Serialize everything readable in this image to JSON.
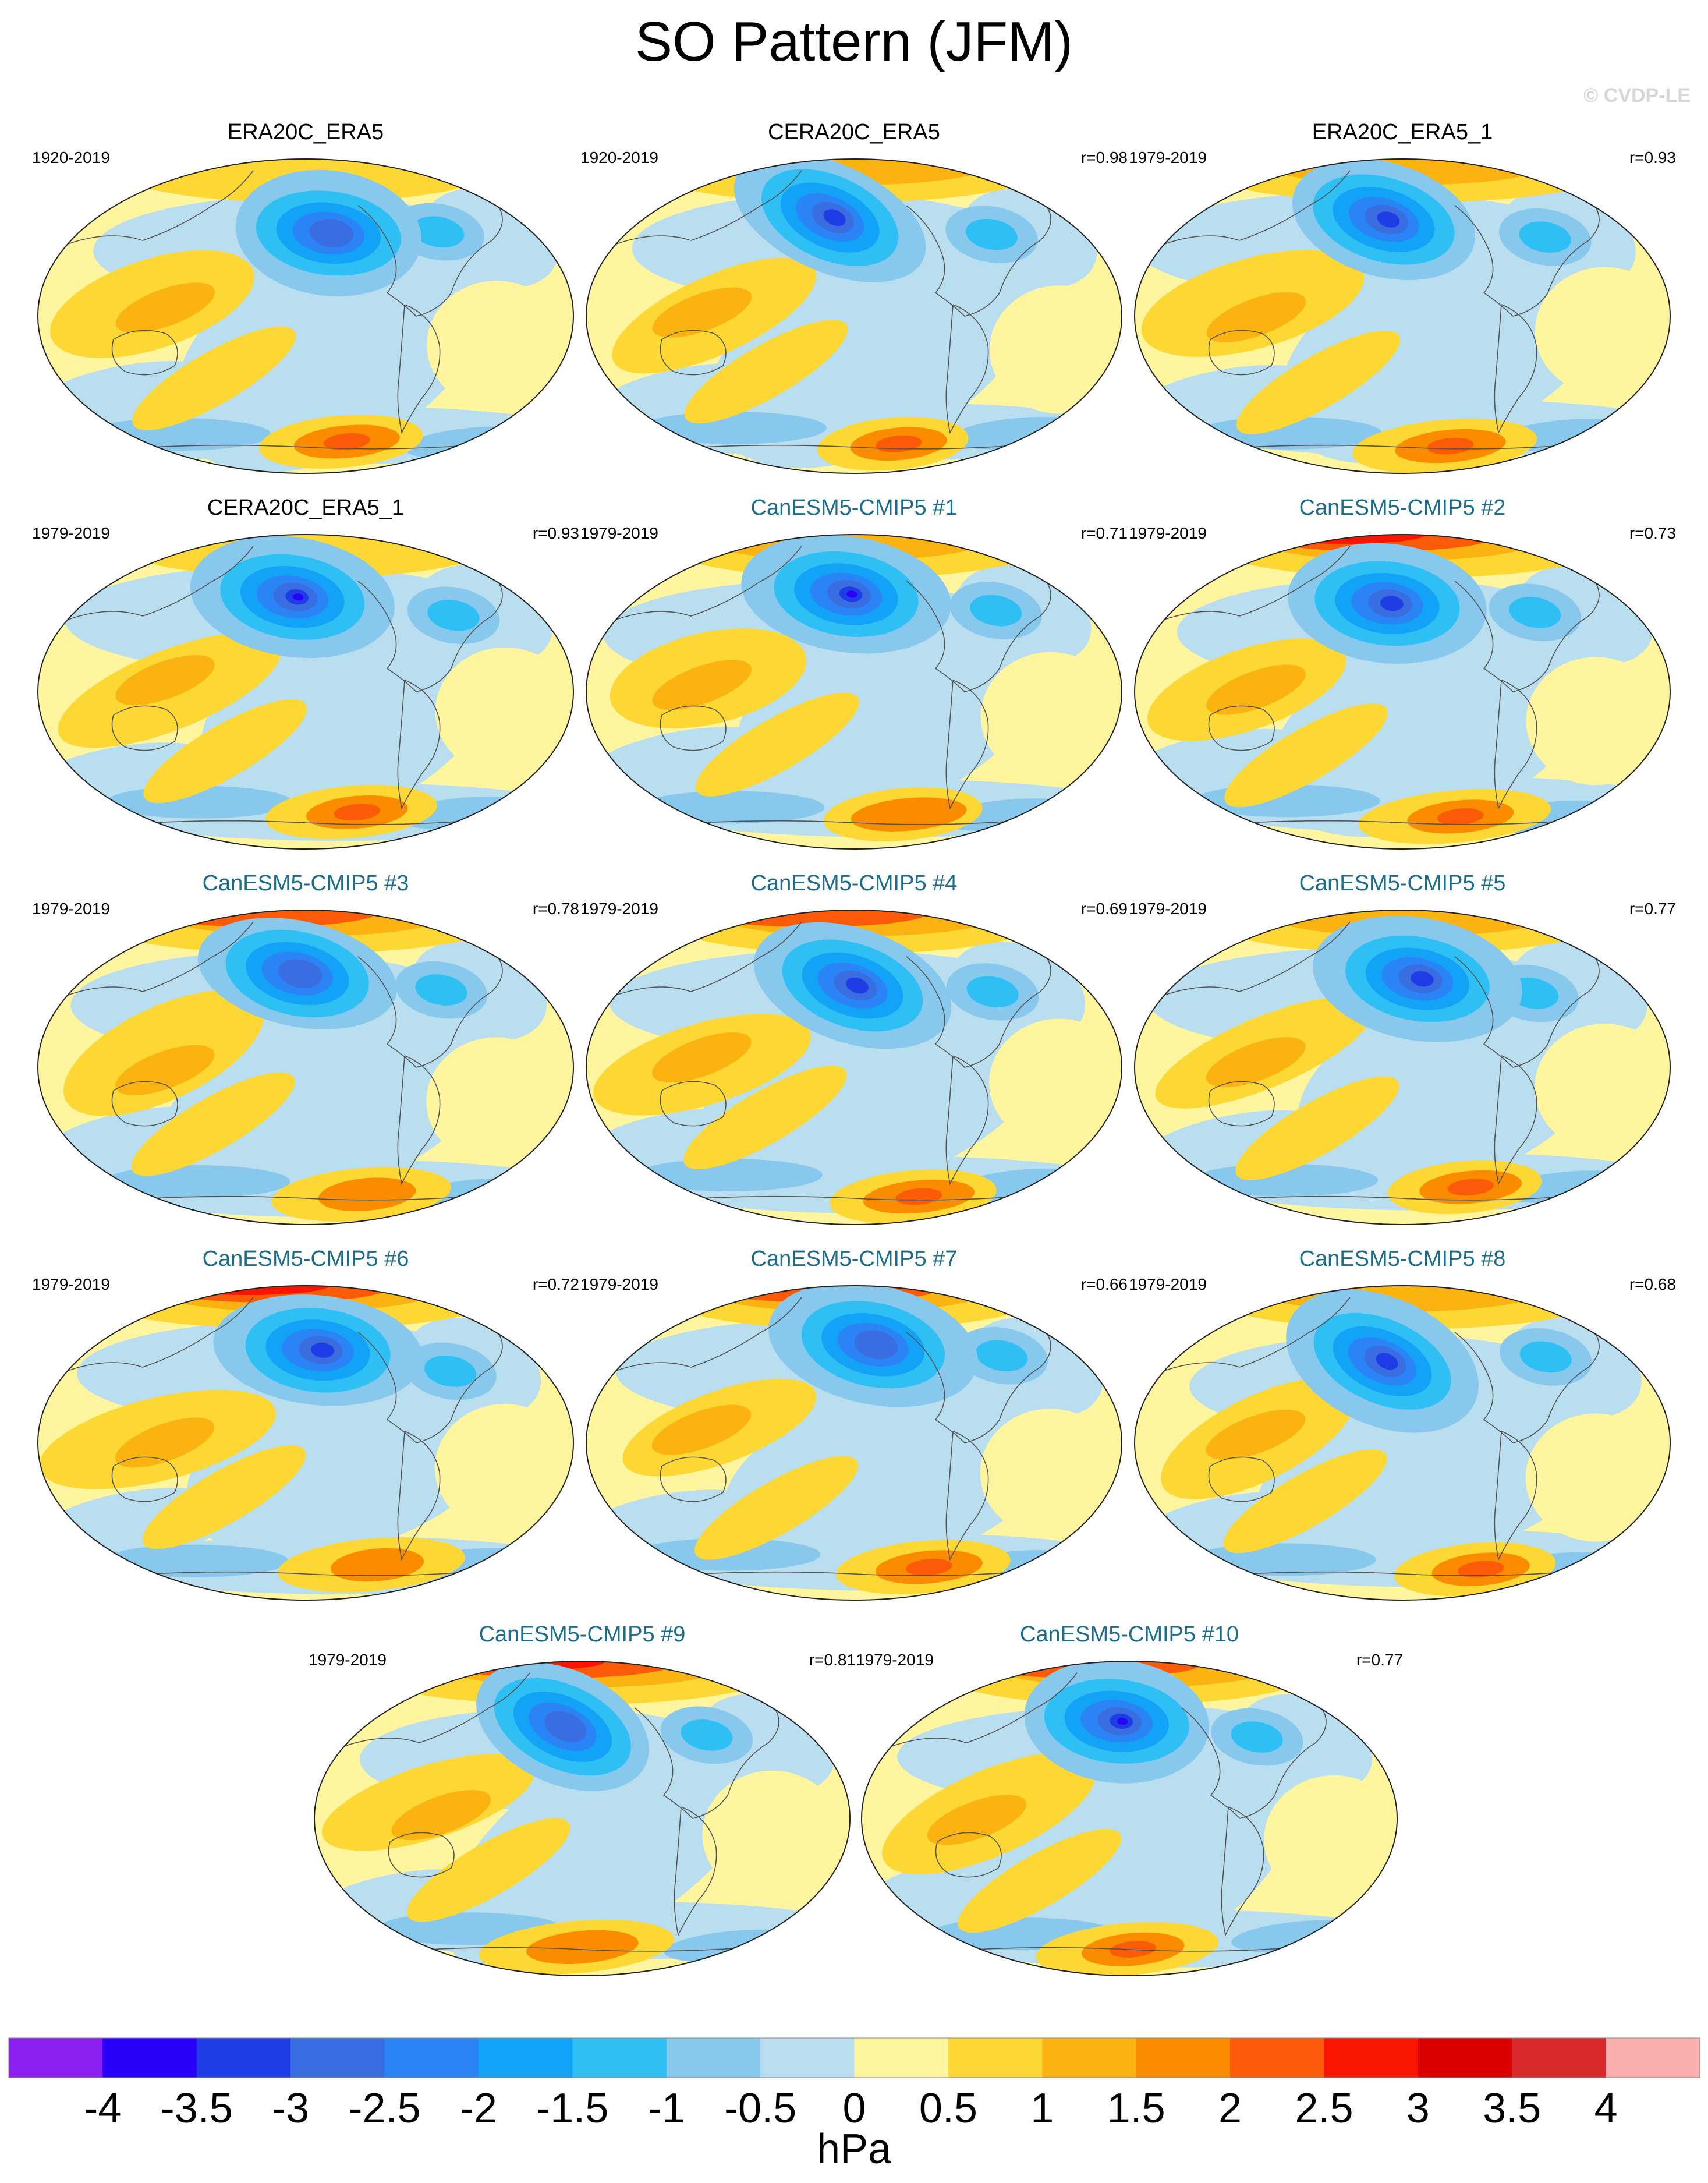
{
  "title": "SO Pattern (JFM)",
  "watermark": "© CVDP-LE",
  "panels": [
    {
      "title": "ERA20C_ERA5",
      "period": "1920-2019",
      "r": "",
      "kind": "obs",
      "variant": 0
    },
    {
      "title": "CERA20C_ERA5",
      "period": "1920-2019",
      "r": "r=0.98",
      "kind": "obs",
      "variant": 1
    },
    {
      "title": "ERA20C_ERA5_1",
      "period": "1979-2019",
      "r": "r=0.93",
      "kind": "obs",
      "variant": 2
    },
    {
      "title": "CERA20C_ERA5_1",
      "period": "1979-2019",
      "r": "r=0.93",
      "kind": "obs",
      "variant": 3
    },
    {
      "title": "CanESM5-CMIP5 #1",
      "period": "1979-2019",
      "r": "r=0.71",
      "kind": "model",
      "variant": 4
    },
    {
      "title": "CanESM5-CMIP5 #2",
      "period": "1979-2019",
      "r": "r=0.73",
      "kind": "model",
      "variant": 5
    },
    {
      "title": "CanESM5-CMIP5 #3",
      "period": "1979-2019",
      "r": "r=0.78",
      "kind": "model",
      "variant": 6
    },
    {
      "title": "CanESM5-CMIP5 #4",
      "period": "1979-2019",
      "r": "r=0.69",
      "kind": "model",
      "variant": 7
    },
    {
      "title": "CanESM5-CMIP5 #5",
      "period": "1979-2019",
      "r": "r=0.77",
      "kind": "model",
      "variant": 8
    },
    {
      "title": "CanESM5-CMIP5 #6",
      "period": "1979-2019",
      "r": "r=0.72",
      "kind": "model",
      "variant": 9
    },
    {
      "title": "CanESM5-CMIP5 #7",
      "period": "1979-2019",
      "r": "r=0.66",
      "kind": "model",
      "variant": 10
    },
    {
      "title": "CanESM5-CMIP5 #8",
      "period": "1979-2019",
      "r": "r=0.68",
      "kind": "model",
      "variant": 11
    },
    {
      "title": "CanESM5-CMIP5 #9",
      "period": "1979-2019",
      "r": "r=0.81",
      "kind": "model",
      "variant": 12
    },
    {
      "title": "CanESM5-CMIP5 #10",
      "period": "1979-2019",
      "r": "r=0.77",
      "kind": "model",
      "variant": 13
    }
  ],
  "colorbar": {
    "unit": "hPa",
    "labels": [
      "-4",
      "-3.5",
      "-3",
      "-2.5",
      "-2",
      "-1.5",
      "-1",
      "-0.5",
      "0",
      "0.5",
      "1",
      "1.5",
      "2",
      "2.5",
      "3",
      "3.5",
      "4"
    ],
    "colors": [
      "#8a1ff0",
      "#2800f8",
      "#1f3de6",
      "#3a6ee0",
      "#2b84f5",
      "#12a2f6",
      "#2ec0f5",
      "#88c8ec",
      "#b9def0",
      "#fff59e",
      "#fdd835",
      "#fbb311",
      "#fb8c00",
      "#fb5a06",
      "#fa1500",
      "#da0000",
      "#d82a2a",
      "#fbaeae"
    ]
  }
}
